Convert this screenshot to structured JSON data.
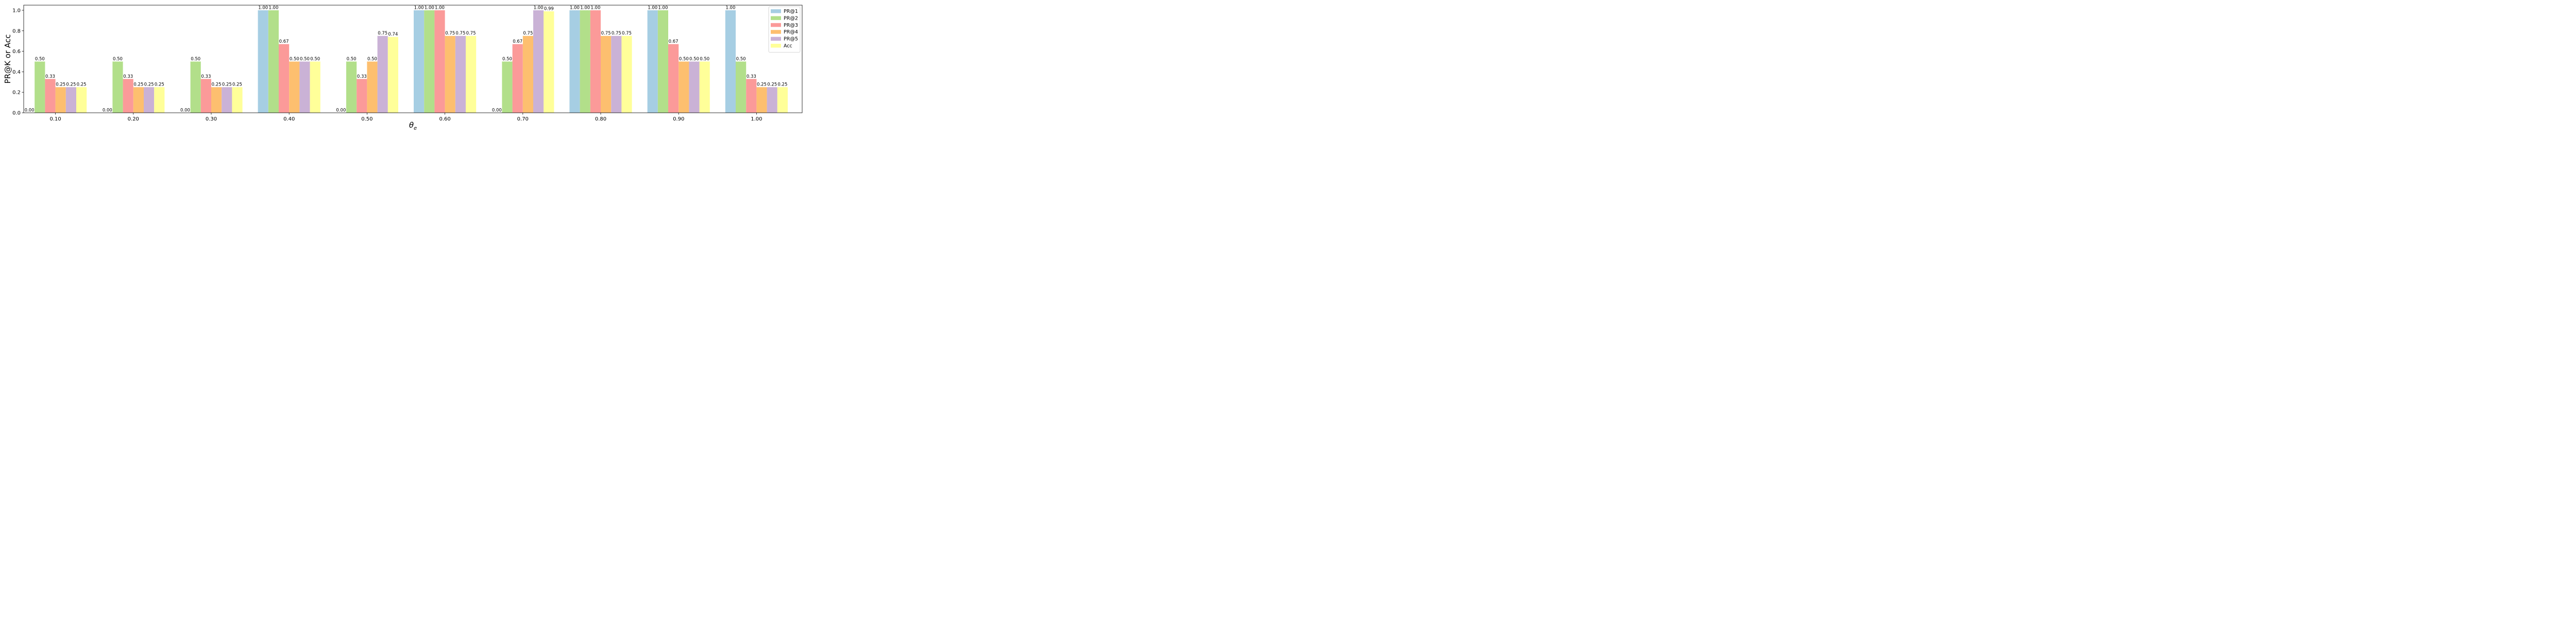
{
  "chart_data": {
    "type": "bar",
    "title": "",
    "xlabel": "θ",
    "xlabel_subscript": "e",
    "ylabel": "PR@K or Acc",
    "ylim": [
      0,
      1.05
    ],
    "yticks": [
      "0.0",
      "0.2",
      "0.4",
      "0.6",
      "0.8",
      "1.0"
    ],
    "grid": false,
    "legend_position": "top-right",
    "categories": [
      "0.10",
      "0.20",
      "0.30",
      "0.40",
      "0.50",
      "0.60",
      "0.70",
      "0.80",
      "0.90",
      "1.00"
    ],
    "series": [
      {
        "name": "PR@1",
        "color": "#a6cee3",
        "values": [
          0.0,
          0.0,
          0.0,
          1.0,
          0.0,
          1.0,
          0.0,
          1.0,
          1.0,
          1.0
        ],
        "labels": [
          "0.00",
          "0.00",
          "0.00",
          "1.00",
          "0.00",
          "1.00",
          "0.00",
          "1.00",
          "1.00",
          "1.00"
        ]
      },
      {
        "name": "PR@2",
        "color": "#b2df8a",
        "values": [
          0.5,
          0.5,
          0.5,
          1.0,
          0.5,
          1.0,
          0.5,
          1.0,
          1.0,
          0.5
        ],
        "labels": [
          "0.50",
          "0.50",
          "0.50",
          "1.00",
          "0.50",
          "1.00",
          "0.50",
          "1.00",
          "1.00",
          "0.50"
        ]
      },
      {
        "name": "PR@3",
        "color": "#fb9a99",
        "values": [
          0.33,
          0.33,
          0.33,
          0.67,
          0.33,
          1.0,
          0.67,
          1.0,
          0.67,
          0.33
        ],
        "labels": [
          "0.33",
          "0.33",
          "0.33",
          "0.67",
          "0.33",
          "1.00",
          "0.67",
          "1.00",
          "0.67",
          "0.33"
        ]
      },
      {
        "name": "PR@4",
        "color": "#fdbf6f",
        "values": [
          0.25,
          0.25,
          0.25,
          0.5,
          0.5,
          0.75,
          0.75,
          0.75,
          0.5,
          0.25
        ],
        "labels": [
          "0.25",
          "0.25",
          "0.25",
          "0.50",
          "0.50",
          "0.75",
          "0.75",
          "0.75",
          "0.50",
          "0.25"
        ]
      },
      {
        "name": "PR@5",
        "color": "#cab2d6",
        "values": [
          0.25,
          0.25,
          0.25,
          0.5,
          0.75,
          0.75,
          1.0,
          0.75,
          0.5,
          0.25
        ],
        "labels": [
          "0.25",
          "0.25",
          "0.25",
          "0.50",
          "0.75",
          "0.75",
          "1.00",
          "0.75",
          "0.50",
          "0.25"
        ]
      },
      {
        "name": "Acc",
        "color": "#ffff99",
        "values": [
          0.25,
          0.25,
          0.25,
          0.5,
          0.74,
          0.75,
          0.99,
          0.75,
          0.5,
          0.25
        ],
        "labels": [
          "0.25",
          "0.25",
          "0.25",
          "0.50",
          "0.74",
          "0.75",
          "0.99",
          "0.75",
          "0.50",
          "0.25"
        ]
      }
    ]
  }
}
